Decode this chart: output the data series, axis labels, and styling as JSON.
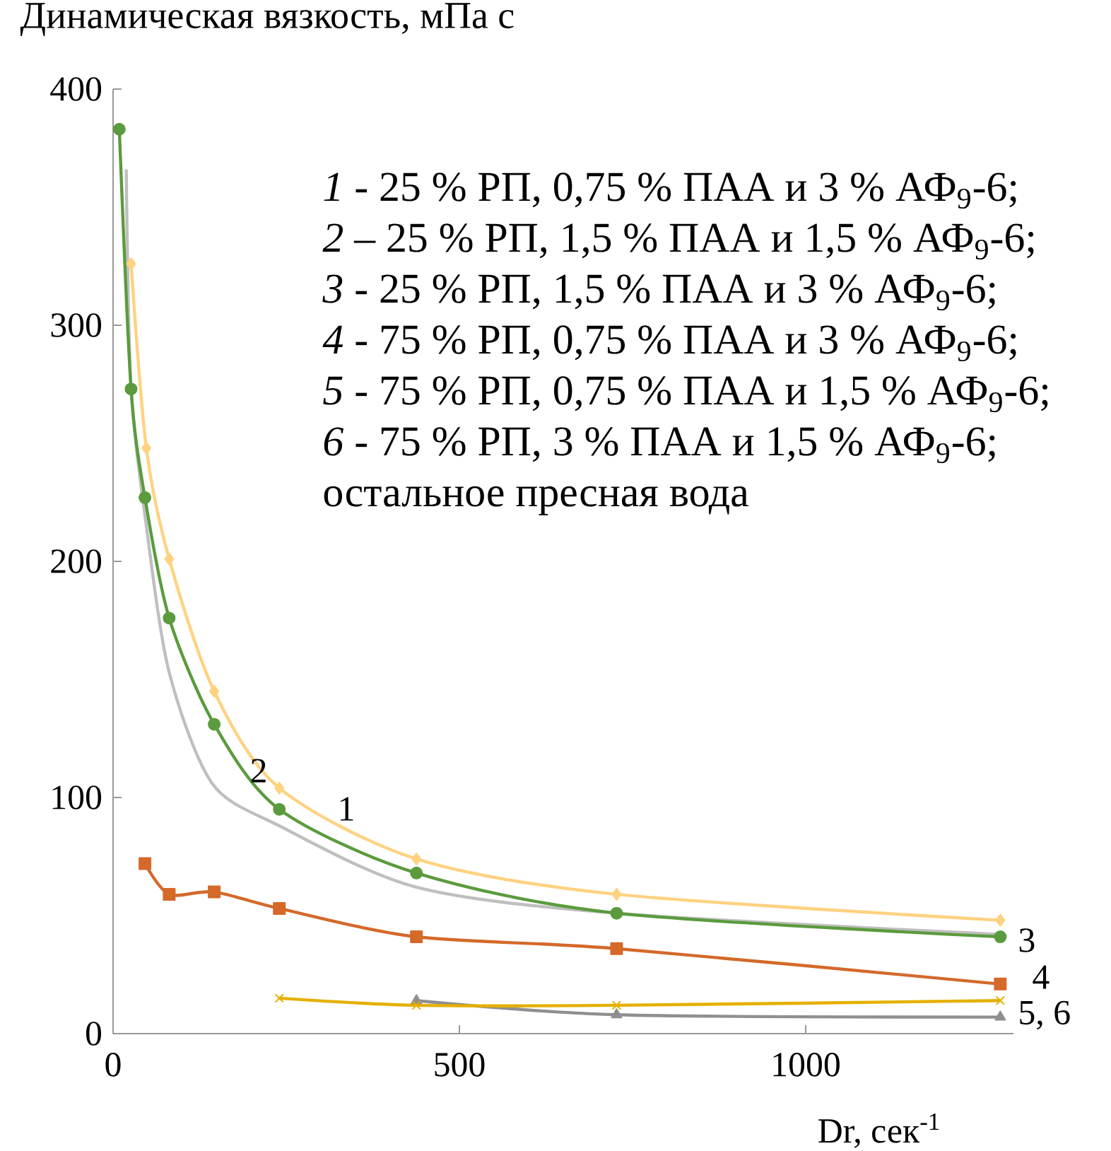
{
  "chart_data": {
    "type": "line",
    "ylabel": "Динамическая вязкость, мПа с",
    "xlabel": "Dr, сек$^{-1}$",
    "xlim": [
      0,
      1300
    ],
    "xticks": [
      0,
      500,
      1000
    ],
    "ylim": [
      0,
      400
    ],
    "yticks": [
      0,
      100,
      200,
      300,
      400
    ],
    "grid": false,
    "line_style": "solid",
    "series": [
      {
        "color": "#ffd280",
        "marker": "diamond",
        "x": [
          26,
          48,
          81,
          146,
          240,
          438,
          727,
          1281
        ],
        "values": [
          326,
          248,
          201,
          145,
          104,
          74,
          59,
          48
        ]
      },
      {
        "color": "#bfbfbf",
        "marker": "none",
        "x": [
          19,
          26,
          48,
          81,
          143,
          240,
          438,
          727,
          1281
        ],
        "values": [
          366,
          273,
          215,
          153,
          106,
          88,
          62,
          51,
          42
        ]
      },
      {
        "color": "#5b9b3d",
        "marker": "circle",
        "x": [
          9,
          26,
          46,
          81,
          146,
          240,
          438,
          727,
          1281
        ],
        "values": [
          383,
          273,
          227,
          176,
          131,
          95,
          68,
          51,
          41
        ]
      },
      {
        "color": "#d4692a",
        "marker": "square",
        "x": [
          46,
          81,
          146,
          240,
          438,
          727,
          1281
        ],
        "values": [
          72,
          59,
          60,
          53,
          41,
          36,
          21
        ]
      },
      {
        "color": "#8f8f8f",
        "marker": "triangle",
        "x": [
          438,
          727,
          1281
        ],
        "values": [
          14,
          8,
          7
        ]
      },
      {
        "color": "#e5b000",
        "marker": "cross",
        "x": [
          240,
          438,
          727,
          1281
        ],
        "values": [
          15,
          12,
          12,
          14
        ]
      }
    ],
    "annotations": [
      "*1* - 25 % РП, 0,75 % ПАА и 3 % АФ$_{9}$-6;",
      "*2* – 25 % РП, 1,5 % ПАА и 1,5 % АФ$_{9}$-6;",
      "*3* - 25 % РП, 1,5 % ПАА и 3 % АФ$_{9}$-6;",
      "*4* - 75 % РП, 0,75 % ПАА и 3 % АФ$_{9}$-6;",
      "*5* - 75 % РП, 0,75 % ПАА и 1,5 % АФ$_{9}$-6;",
      "*6* - 75 % РП, 3 % ПАА и 1,5 % АФ$_{9}$-6;",
      "остальное пресная вода",
      "1",
      "2",
      "3",
      "4",
      "5, 6"
    ]
  }
}
